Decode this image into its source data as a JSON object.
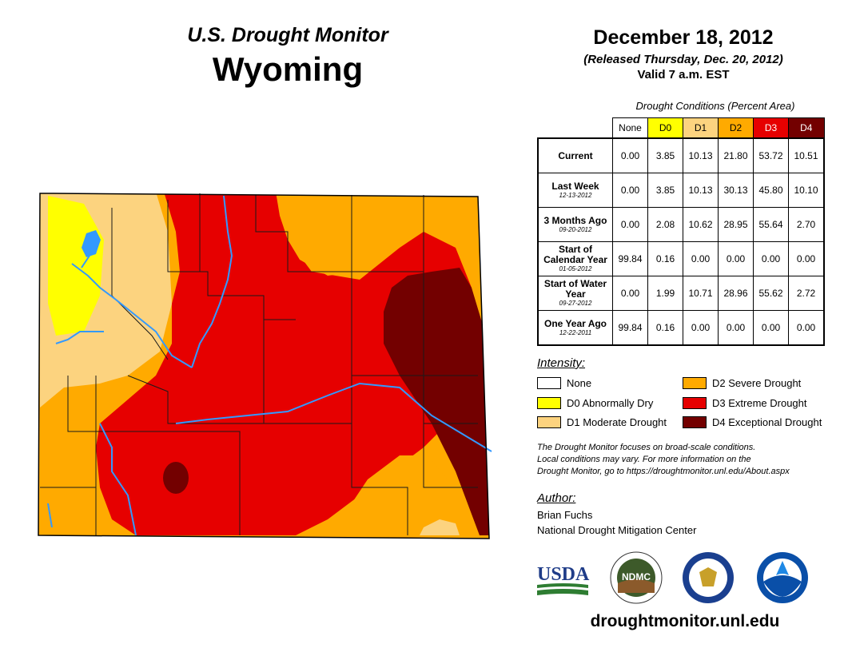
{
  "header": {
    "brand": "U.S. Drought Monitor",
    "state": "Wyoming",
    "map_date": "December 18, 2012",
    "released": "(Released Thursday, Dec. 20, 2012)",
    "valid": "Valid 7 a.m. EST"
  },
  "table": {
    "caption": "Drought Conditions (Percent Area)",
    "columns": [
      "None",
      "D0",
      "D1",
      "D2",
      "D3",
      "D4"
    ],
    "column_colors": [
      "#ffffff",
      "#ffff00",
      "#fcd37f",
      "#ffaa00",
      "#e60000",
      "#730000"
    ],
    "rows": [
      {
        "label": "Current",
        "date": "",
        "values": [
          "0.00",
          "3.85",
          "10.13",
          "21.80",
          "53.72",
          "10.51"
        ]
      },
      {
        "label": "Last Week",
        "date": "12-13-2012",
        "values": [
          "0.00",
          "3.85",
          "10.13",
          "30.13",
          "45.80",
          "10.10"
        ]
      },
      {
        "label": "3 Months Ago",
        "date": "09-20-2012",
        "values": [
          "0.00",
          "2.08",
          "10.62",
          "28.95",
          "55.64",
          "2.70"
        ]
      },
      {
        "label": "Start of Calendar Year",
        "date": "01-05-2012",
        "values": [
          "99.84",
          "0.16",
          "0.00",
          "0.00",
          "0.00",
          "0.00"
        ]
      },
      {
        "label": "Start of Water Year",
        "date": "09-27-2012",
        "values": [
          "0.00",
          "1.99",
          "10.71",
          "28.96",
          "55.62",
          "2.72"
        ]
      },
      {
        "label": "One Year Ago",
        "date": "12-22-2011",
        "values": [
          "99.84",
          "0.16",
          "0.00",
          "0.00",
          "0.00",
          "0.00"
        ]
      }
    ]
  },
  "legend": {
    "title": "Intensity:",
    "items": [
      {
        "label": "None",
        "color": "#ffffff"
      },
      {
        "label": "D0 Abnormally Dry",
        "color": "#ffff00"
      },
      {
        "label": "D1 Moderate Drought",
        "color": "#fcd37f"
      },
      {
        "label": "D2 Severe Drought",
        "color": "#ffaa00"
      },
      {
        "label": "D3 Extreme Drought",
        "color": "#e60000"
      },
      {
        "label": "D4 Exceptional Drought",
        "color": "#730000"
      }
    ]
  },
  "disclaimer": {
    "line1": "The Drought Monitor focuses on broad-scale conditions.",
    "line2": "Local conditions may vary. For more information on the",
    "line3": "Drought Monitor, go to https://droughtmonitor.unl.edu/About.aspx"
  },
  "author": {
    "heading": "Author:",
    "name": "Brian Fuchs",
    "organization": "National Drought Mitigation Center"
  },
  "logos": {
    "usda": "USDA",
    "ndmc": "NDMC",
    "noaa": "NOAA"
  },
  "website": "droughtmonitor.unl.edu",
  "colors": {
    "river": "#3399ff",
    "county_line": "#1a1a1a"
  }
}
